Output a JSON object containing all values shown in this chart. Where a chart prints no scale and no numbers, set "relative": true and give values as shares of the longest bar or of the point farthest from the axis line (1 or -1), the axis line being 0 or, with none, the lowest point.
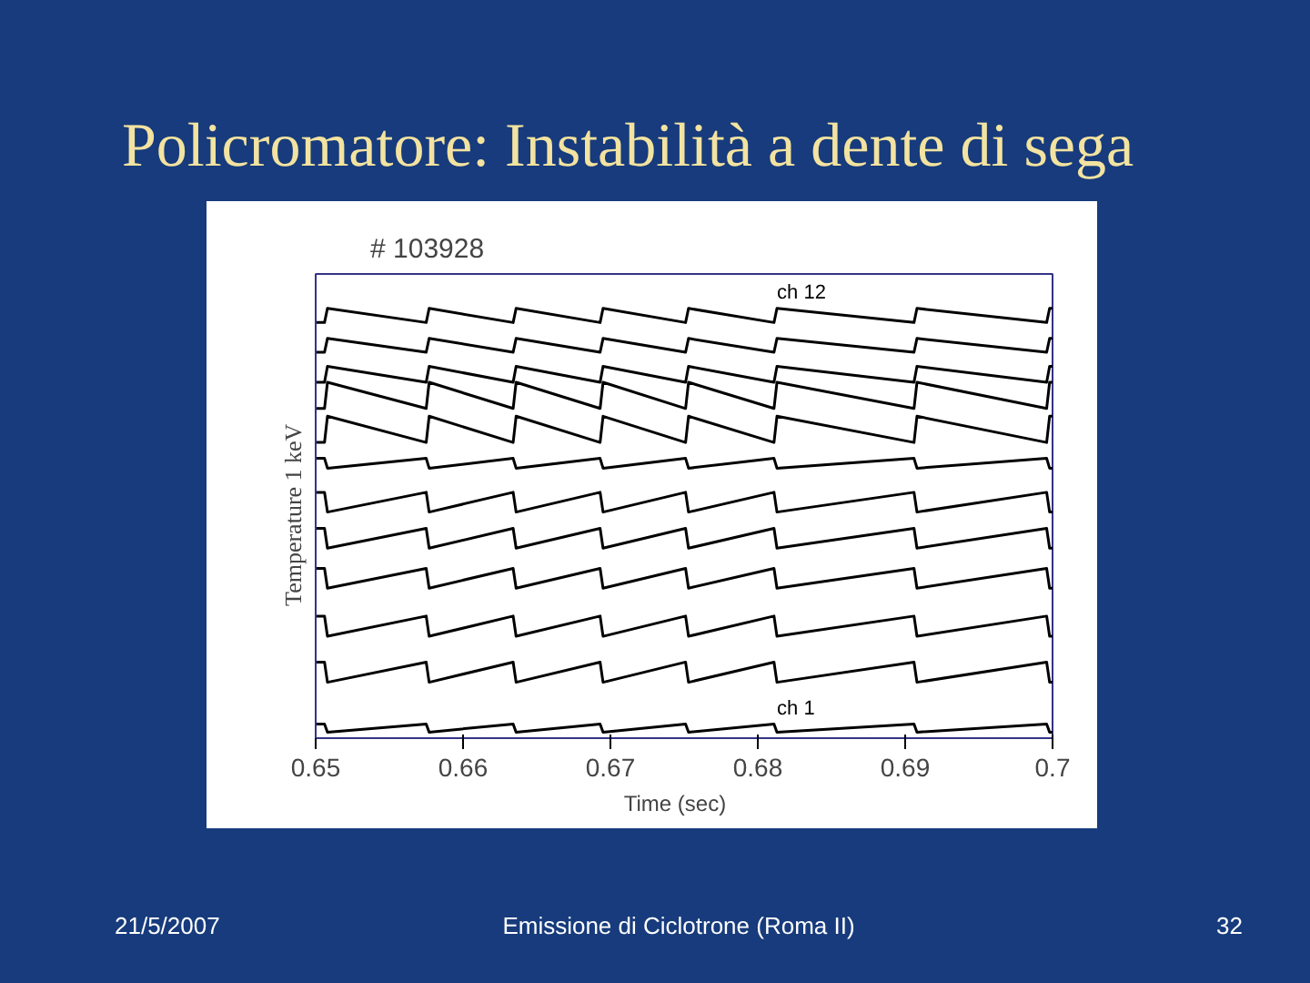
{
  "chart_data": {
    "type": "line",
    "title": "Policromatore: Instabilità a dente di sega",
    "subtitle": "# 103928",
    "xlabel": "Time    (sec)",
    "ylabel": "Temperature    1 keV",
    "relative": true,
    "x": [
      0.65,
      0.6506,
      0.6508,
      0.6575,
      0.6577,
      0.6634,
      0.6636,
      0.6693,
      0.6695,
      0.6751,
      0.6753,
      0.6811,
      0.6813,
      0.6906,
      0.6908,
      0.6996,
      0.6998,
      0.7
    ],
    "xlim": [
      0.65,
      0.7
    ],
    "xticks": [
      0.65,
      0.66,
      0.67,
      0.68,
      0.69,
      0.7
    ],
    "grid": false,
    "marker": "none",
    "line_style": "solid",
    "series": [
      {
        "name": "ch 1",
        "color": "#000000",
        "values": [
          0.033,
          0.033,
          0.014,
          0.033,
          0.014,
          0.033,
          0.014,
          0.033,
          0.014,
          0.033,
          0.014,
          0.033,
          0.014,
          0.033,
          0.014,
          0.033,
          0.014,
          0.014
        ]
      },
      {
        "color": "#000000",
        "values": [
          0.177,
          0.177,
          0.13,
          0.177,
          0.13,
          0.177,
          0.13,
          0.177,
          0.13,
          0.177,
          0.13,
          0.177,
          0.13,
          0.177,
          0.13,
          0.177,
          0.13,
          0.13
        ]
      },
      {
        "color": "#000000",
        "values": [
          0.284,
          0.284,
          0.237,
          0.284,
          0.237,
          0.284,
          0.237,
          0.284,
          0.237,
          0.284,
          0.237,
          0.284,
          0.237,
          0.284,
          0.237,
          0.284,
          0.237,
          0.237
        ]
      },
      {
        "color": "#000000",
        "values": [
          0.395,
          0.395,
          0.349,
          0.395,
          0.349,
          0.395,
          0.349,
          0.395,
          0.349,
          0.395,
          0.349,
          0.395,
          0.349,
          0.395,
          0.349,
          0.395,
          0.349,
          0.349
        ]
      },
      {
        "color": "#000000",
        "values": [
          0.488,
          0.488,
          0.442,
          0.488,
          0.442,
          0.488,
          0.442,
          0.488,
          0.442,
          0.488,
          0.442,
          0.488,
          0.442,
          0.488,
          0.442,
          0.488,
          0.442,
          0.442
        ]
      },
      {
        "color": "#000000",
        "values": [
          0.572,
          0.572,
          0.526,
          0.572,
          0.526,
          0.572,
          0.526,
          0.572,
          0.526,
          0.572,
          0.526,
          0.572,
          0.526,
          0.572,
          0.526,
          0.572,
          0.526,
          0.526
        ]
      },
      {
        "color": "#000000",
        "values": [
          0.651,
          0.651,
          0.628,
          0.651,
          0.628,
          0.651,
          0.628,
          0.651,
          0.628,
          0.651,
          0.628,
          0.651,
          0.628,
          0.651,
          0.628,
          0.651,
          0.628,
          0.628
        ]
      },
      {
        "color": "#000000",
        "values": [
          0.688,
          0.688,
          0.749,
          0.688,
          0.749,
          0.688,
          0.749,
          0.688,
          0.749,
          0.688,
          0.749,
          0.688,
          0.749,
          0.688,
          0.749,
          0.688,
          0.749,
          0.749
        ]
      },
      {
        "color": "#000000",
        "values": [
          0.767,
          0.767,
          0.828,
          0.767,
          0.828,
          0.767,
          0.828,
          0.767,
          0.828,
          0.767,
          0.828,
          0.767,
          0.828,
          0.767,
          0.828,
          0.767,
          0.828,
          0.828
        ]
      },
      {
        "color": "#000000",
        "values": [
          0.828,
          0.828,
          0.865,
          0.828,
          0.865,
          0.828,
          0.865,
          0.828,
          0.865,
          0.828,
          0.865,
          0.828,
          0.865,
          0.828,
          0.865,
          0.828,
          0.865,
          0.865
        ]
      },
      {
        "color": "#000000",
        "values": [
          0.898,
          0.898,
          0.93,
          0.898,
          0.93,
          0.898,
          0.93,
          0.898,
          0.93,
          0.898,
          0.93,
          0.898,
          0.93,
          0.898,
          0.93,
          0.898,
          0.93,
          0.93
        ]
      },
      {
        "name": "ch 12",
        "color": "#000000",
        "values": [
          0.967,
          0.967,
          1.0,
          0.967,
          1.0,
          0.967,
          1.0,
          0.967,
          1.0,
          0.967,
          1.0,
          0.967,
          1.0,
          0.967,
          1.0,
          0.967,
          1.0,
          1.0
        ]
      }
    ],
    "annotations": [
      "21/5/2007",
      "Emissione di Ciclotrone (Roma II)",
      "32"
    ]
  }
}
